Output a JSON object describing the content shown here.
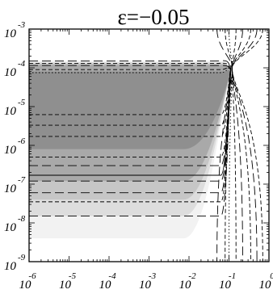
{
  "chart_data": {
    "type": "contour",
    "title": "ε=−0.05",
    "xlabel": "",
    "ylabel": "",
    "x_scale": "log",
    "y_scale": "log",
    "xlim": [
      1e-06,
      1
    ],
    "ylim": [
      1e-09,
      0.001
    ],
    "x_ticks": [
      {
        "base": "10",
        "exp": "-6",
        "value": 1e-06
      },
      {
        "base": "10",
        "exp": "-5",
        "value": 1e-05
      },
      {
        "base": "10",
        "exp": "-4",
        "value": 0.0001
      },
      {
        "base": "10",
        "exp": "-3",
        "value": 0.001
      },
      {
        "base": "10",
        "exp": "-2",
        "value": 0.01
      },
      {
        "base": "10",
        "exp": "-1",
        "value": 0.1
      },
      {
        "base": "10",
        "exp": "0",
        "value": 1
      }
    ],
    "y_ticks": [
      {
        "base": "10",
        "exp": "-3",
        "value": 0.001
      },
      {
        "base": "10",
        "exp": "-4",
        "value": 0.0001
      },
      {
        "base": "10",
        "exp": "-5",
        "value": 1e-05
      },
      {
        "base": "10",
        "exp": "-6",
        "value": 1e-06
      },
      {
        "base": "10",
        "exp": "-7",
        "value": 1e-07
      },
      {
        "base": "10",
        "exp": "-8",
        "value": 1e-08
      },
      {
        "base": "10",
        "exp": "-9",
        "value": 1e-09
      }
    ],
    "fill_colors": {
      "darkest": "#8f8f8f",
      "dark": "#a9a9a9",
      "mid": "#c6c6c6",
      "light": "#dddddd",
      "lightest": "#f2f2f2",
      "white": "#ffffff"
    },
    "shaded_bands": [
      {
        "level": "lightest",
        "y_range": [
          4e-09,
          0.00015
        ]
      },
      {
        "level": "light",
        "y_range": [
          1.5e-08,
          0.00014
        ]
      },
      {
        "level": "mid",
        "y_range": [
          4e-08,
          0.00013
        ]
      },
      {
        "level": "dark",
        "y_range": [
          1.2e-07,
          0.00012
        ]
      },
      {
        "level": "darkest",
        "y_range": [
          8e-07,
          8e-05
        ]
      }
    ],
    "contour_levels": [
      {
        "y": 0.00015,
        "style": "long-dash"
      },
      {
        "y": 0.00013,
        "style": "short-dash"
      },
      {
        "y": 0.000115,
        "style": "long-dash"
      },
      {
        "y": 9e-05,
        "style": "short-dash"
      },
      {
        "y": 7.5e-05,
        "style": "dotted"
      },
      {
        "y": 6.2e-06,
        "style": "short-dash"
      },
      {
        "y": 3.3e-06,
        "style": "short-dash"
      },
      {
        "y": 1.7e-06,
        "style": "short-dash"
      },
      {
        "y": 5e-07,
        "style": "short-dash"
      },
      {
        "y": 3e-07,
        "style": "long-dash"
      },
      {
        "y": 1.7e-07,
        "style": "solid"
      },
      {
        "y": 1.2e-07,
        "style": "long-dash"
      },
      {
        "y": 6e-08,
        "style": "long-dash"
      },
      {
        "y": 3.5e-08,
        "style": "short-dash"
      },
      {
        "y": 1.5e-08,
        "style": "long-dash"
      }
    ],
    "ridge": {
      "x_center": 0.12,
      "y_center": 0.0001,
      "verticals": [
        {
          "x": 0.05,
          "style": "long-dash"
        },
        {
          "x": 0.08,
          "style": "short-dash"
        },
        {
          "x": 0.1,
          "style": "dotted"
        },
        {
          "x": 0.15,
          "style": "short-dash"
        },
        {
          "x": 0.22,
          "style": "long-dash"
        },
        {
          "x": 0.35,
          "style": "short-dash"
        },
        {
          "x": 0.5,
          "style": "long-dash"
        },
        {
          "x": 0.7,
          "style": "short-dash"
        }
      ]
    }
  }
}
